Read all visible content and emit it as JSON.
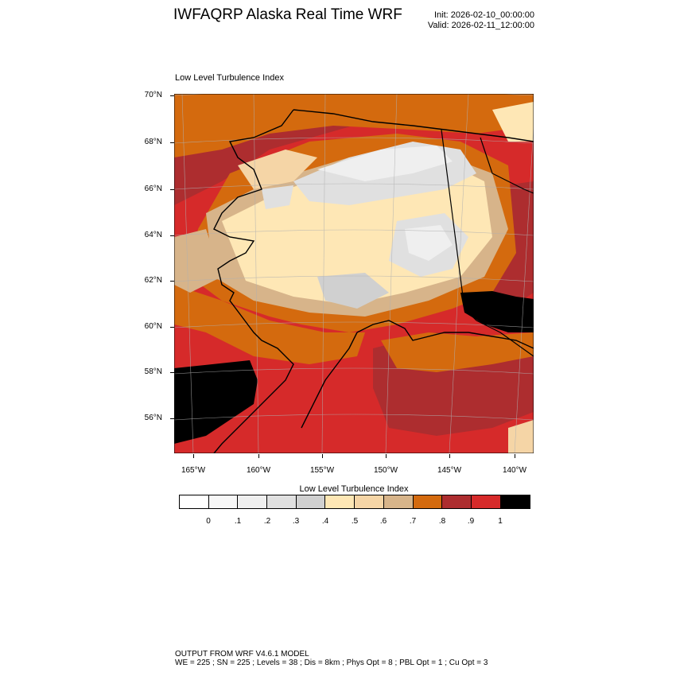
{
  "header": {
    "title": "IWFAQRP Alaska Real Time WRF",
    "init": "Init: 2026-02-10_00:00:00",
    "valid": "Valid: 2026-02-11_12:00:00"
  },
  "map": {
    "field_title": "Low Level Turbulence Index",
    "lat_labels": [
      "70°N",
      "68°N",
      "66°N",
      "64°N",
      "62°N",
      "60°N",
      "58°N",
      "56°N"
    ],
    "lon_labels": [
      "165°W",
      "160°W",
      "155°W",
      "150°W",
      "145°W",
      "140°W"
    ]
  },
  "colorbar": {
    "title": "Low Level Turbulence Index",
    "labels": [
      "0",
      ".1",
      ".2",
      ".3",
      ".4",
      ".5",
      ".6",
      ".7",
      ".8",
      ".9",
      "1"
    ],
    "colors": [
      "#ffffff",
      "#f7f7f7",
      "#efefef",
      "#e0e0e0",
      "#d0d0d0",
      "#fee7b5",
      "#f5d5a6",
      "#d7b48a",
      "#d46a0e",
      "#ad2d2f",
      "#d62a2a",
      "#000000"
    ]
  },
  "footer": {
    "line1": "OUTPUT FROM WRF V4.6.1 MODEL",
    "line2": "WE = 225 ; SN = 225 ; Levels = 38 ; Dis = 8km ; Phys Opt = 8 ; PBL Opt = 1 ; Cu Opt = 3"
  }
}
